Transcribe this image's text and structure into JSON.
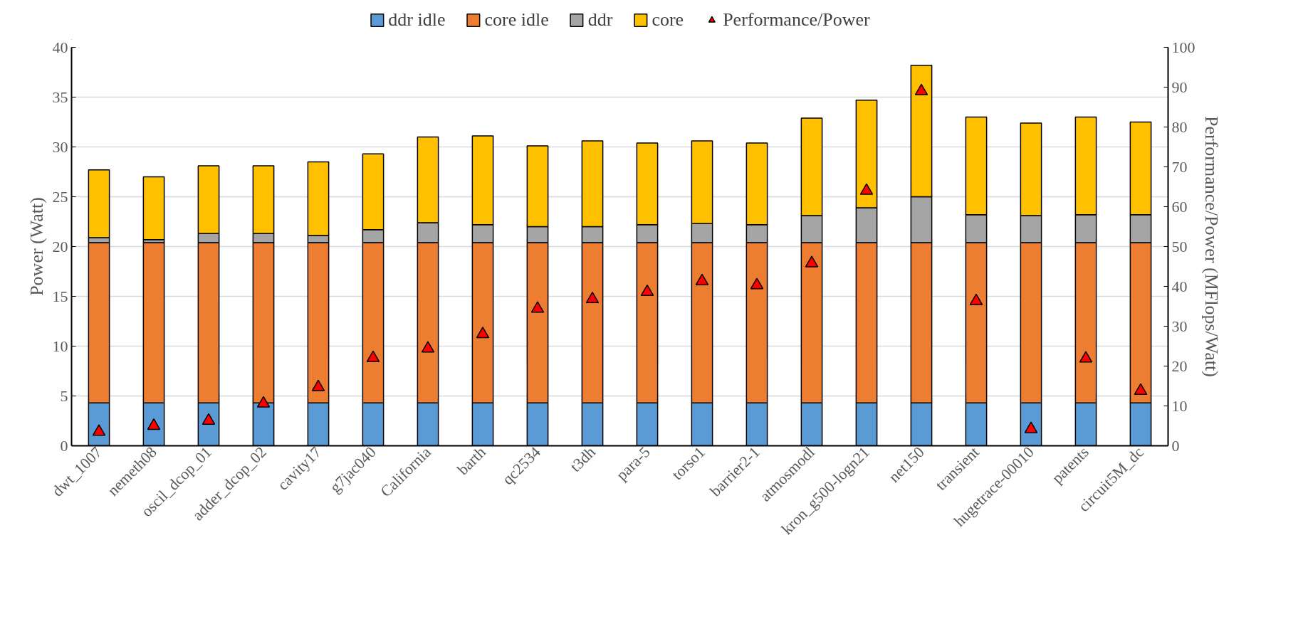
{
  "chart_data": {
    "type": "bar",
    "stacked": true,
    "ylabel": "Power (Watt)",
    "y2label": "Performance/Power (MFlops/Watt)",
    "categories": [
      "dwt_1007",
      "nemeth08",
      "oscil_dcop_01",
      "adder_dcop_02",
      "cavity17",
      "g7jac040",
      "California",
      "barth",
      "qc2534",
      "t3dh",
      "para-5",
      "torso1",
      "barrier2-1",
      "atmosmodl",
      "kron_g500-logn21",
      "net150",
      "transient",
      "hugetrace-00010",
      "patents",
      "circuit5M_dc"
    ],
    "series": [
      {
        "name": "ddr idle",
        "color": "#5b9bd5",
        "values": [
          4.3,
          4.3,
          4.3,
          4.3,
          4.3,
          4.3,
          4.3,
          4.3,
          4.3,
          4.3,
          4.3,
          4.3,
          4.3,
          4.3,
          4.3,
          4.3,
          4.3,
          4.3,
          4.3,
          4.3
        ]
      },
      {
        "name": "core idle",
        "color": "#ed7d31",
        "values": [
          16.1,
          16.1,
          16.1,
          16.1,
          16.1,
          16.1,
          16.1,
          16.1,
          16.1,
          16.1,
          16.1,
          16.1,
          16.1,
          16.1,
          16.1,
          16.1,
          16.1,
          16.1,
          16.1,
          16.1
        ]
      },
      {
        "name": "ddr",
        "color": "#a5a5a5",
        "values": [
          0.5,
          0.3,
          0.9,
          0.9,
          0.7,
          1.3,
          2.0,
          1.8,
          1.6,
          1.6,
          1.8,
          1.9,
          1.8,
          2.7,
          3.5,
          4.6,
          2.8,
          2.7,
          2.8,
          2.8
        ]
      },
      {
        "name": "core",
        "color": "#ffc000",
        "values": [
          6.8,
          6.3,
          6.8,
          6.8,
          7.4,
          7.6,
          8.6,
          8.9,
          8.1,
          8.6,
          8.2,
          8.3,
          8.2,
          9.8,
          10.8,
          13.2,
          9.8,
          9.3,
          9.8,
          9.3
        ]
      },
      {
        "name": "Performance/Power",
        "type": "scatter",
        "axis": "y2",
        "marker": "triangle",
        "color": "#ff0000",
        "values": [
          3.5,
          5,
          6.3,
          10.6,
          14.7,
          22,
          24.4,
          28,
          34.4,
          36.8,
          38.6,
          41.3,
          40.3,
          45.8,
          64,
          89,
          36.3,
          4.2,
          21.9,
          13.8
        ]
      }
    ],
    "ylim": [
      0,
      40
    ],
    "yticks": [
      0,
      5,
      10,
      15,
      20,
      25,
      30,
      35,
      40
    ],
    "y2lim": [
      0,
      100
    ],
    "y2ticks": [
      0,
      10,
      20,
      30,
      40,
      50,
      60,
      70,
      80,
      90,
      100
    ],
    "grid": "y",
    "legend": "top"
  }
}
